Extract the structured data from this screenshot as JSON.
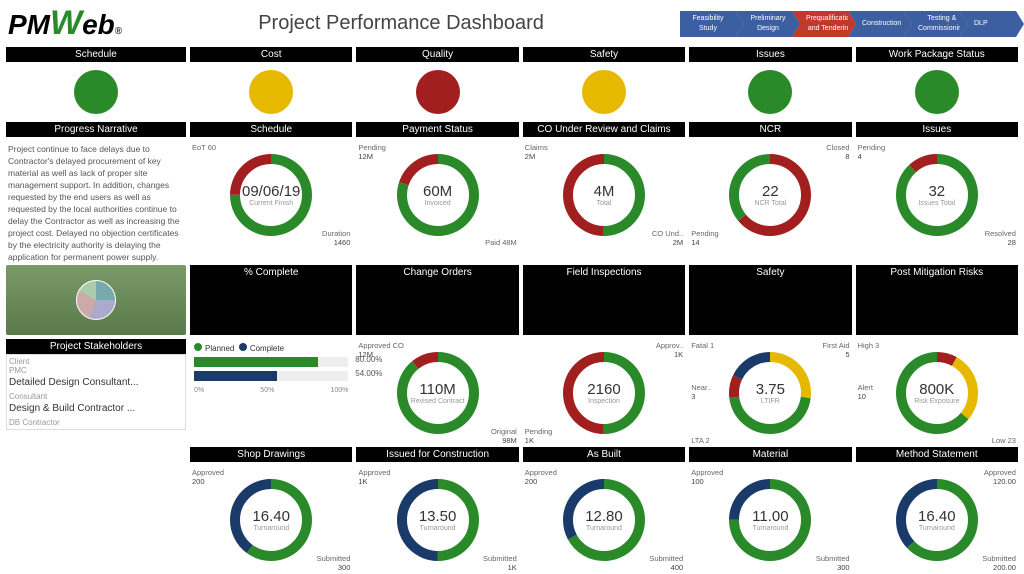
{
  "brand": {
    "pm": "PM",
    "w": "W",
    "eb": "eb",
    "reg": "®"
  },
  "title": "Project Performance Dashboard",
  "phases": [
    {
      "label": "Feasibility Study",
      "cls": "blue"
    },
    {
      "label": "Preliminary Design",
      "cls": "blue"
    },
    {
      "label": "Prequalification and Tendering",
      "cls": "red"
    },
    {
      "label": "Construction",
      "cls": "blue"
    },
    {
      "label": "Testing & Commissioning",
      "cls": "blue"
    },
    {
      "label": "DLP",
      "cls": "blue"
    }
  ],
  "indicators": [
    {
      "name": "Schedule",
      "color": "green"
    },
    {
      "name": "Cost",
      "color": "yellow"
    },
    {
      "name": "Quality",
      "color": "red"
    },
    {
      "name": "Safety",
      "color": "yellow"
    },
    {
      "name": "Issues",
      "color": "green"
    },
    {
      "name": "Work Package Status",
      "color": "green"
    }
  ],
  "narrative": {
    "heading": "Progress Narrative",
    "text": "Project continue to face delays due to Contractor's delayed procurement of key material as well as lack of proper site management support. In addition, changes requested by the end users as well as requested by the local authorities continue to delay the Contractor as well as increasing the project cost. Delayed no objection certificates by the electricity authority is delaying the application for permanent power supply."
  },
  "stakeholders_heading": "Project Stakeholders",
  "stakeholders": [
    {
      "role": "Client",
      "name": ""
    },
    {
      "role": "PMC",
      "name": ""
    },
    {
      "role": "Consultant",
      "name": "Detailed Design Consultant..."
    },
    {
      "role": "DB Contractor",
      "name": "Design & Build Contractor ..."
    }
  ],
  "pct_complete": {
    "heading": "% Complete",
    "legend_planned": "Planned",
    "legend_complete": "Complete",
    "planned_pct": 80,
    "planned_txt": "80.00%",
    "complete_pct": 54,
    "complete_txt": "54.00%",
    "axis": [
      "0%",
      "50%",
      "100%"
    ]
  },
  "donuts_row1": [
    {
      "heading": "Schedule",
      "center_val": "09/06/19",
      "center_lab": "Current Finish",
      "segments": [
        {
          "c": "#2a8a2a",
          "p": 75
        },
        {
          "c": "#a21f1f",
          "p": 25
        }
      ],
      "labels": [
        {
          "t": "EoT 60",
          "pos": "tl"
        },
        {
          "t": "Duration",
          "v": "1460",
          "pos": "br"
        }
      ]
    },
    {
      "heading": "Payment Status",
      "center_val": "60M",
      "center_lab": "Invoiced",
      "segments": [
        {
          "c": "#2a8a2a",
          "p": 80
        },
        {
          "c": "#a21f1f",
          "p": 20
        }
      ],
      "labels": [
        {
          "t": "Pending",
          "v": "12M",
          "pos": "tl"
        },
        {
          "t": "Paid 48M",
          "pos": "br"
        }
      ]
    },
    {
      "heading": "CO Under Review and Claims",
      "center_val": "4M",
      "center_lab": "Total",
      "segments": [
        {
          "c": "#2a8a2a",
          "p": 50
        },
        {
          "c": "#a21f1f",
          "p": 50
        }
      ],
      "labels": [
        {
          "t": "Claims",
          "v": "2M",
          "pos": "tl"
        },
        {
          "t": "CO Und..",
          "v": "2M",
          "pos": "br"
        }
      ]
    },
    {
      "heading": "NCR",
      "center_val": "22",
      "center_lab": "NCR Total",
      "segments": [
        {
          "c": "#a21f1f",
          "p": 64
        },
        {
          "c": "#2a8a2a",
          "p": 36
        }
      ],
      "labels": [
        {
          "t": "Closed",
          "v": "8",
          "pos": "tr"
        },
        {
          "t": "Pending",
          "v": "14",
          "pos": "bl"
        }
      ]
    },
    {
      "heading": "Issues",
      "center_val": "32",
      "center_lab": "Issues Total",
      "segments": [
        {
          "c": "#2a8a2a",
          "p": 88
        },
        {
          "c": "#a21f1f",
          "p": 12
        }
      ],
      "labels": [
        {
          "t": "Pending",
          "v": "4",
          "pos": "tl"
        },
        {
          "t": "Resolved",
          "v": "28",
          "pos": "br"
        }
      ]
    }
  ],
  "donuts_row2": [
    {
      "heading": "Change Orders",
      "center_val": "110M",
      "center_lab": "Revised Contract",
      "segments": [
        {
          "c": "#2a8a2a",
          "p": 89
        },
        {
          "c": "#a21f1f",
          "p": 11
        }
      ],
      "labels": [
        {
          "t": "Approved CO",
          "v": "12M",
          "pos": "tl"
        },
        {
          "t": "Original",
          "v": "98M",
          "pos": "br"
        }
      ]
    },
    {
      "heading": "Field Inspections",
      "center_val": "2160",
      "center_lab": "Inspection",
      "segments": [
        {
          "c": "#2a8a2a",
          "p": 50
        },
        {
          "c": "#a21f1f",
          "p": 50
        }
      ],
      "labels": [
        {
          "t": "Approv..",
          "v": "1K",
          "pos": "tr"
        },
        {
          "t": "Pending",
          "v": "1K",
          "pos": "bl"
        }
      ]
    },
    {
      "heading": "Safety",
      "center_val": "3.75",
      "center_lab": "LTIFR",
      "segments": [
        {
          "c": "#e6b800",
          "p": 27
        },
        {
          "c": "#2a8a2a",
          "p": 46
        },
        {
          "c": "#a21f1f",
          "p": 9
        },
        {
          "c": "#1a3a6a",
          "p": 18
        }
      ],
      "labels": [
        {
          "t": "Fatal 1",
          "pos": "tl"
        },
        {
          "t": "Near..",
          "v": "3",
          "pos": "ml"
        },
        {
          "t": "First Aid",
          "v": "5",
          "pos": "tr"
        },
        {
          "t": "LTA 2",
          "pos": "bl"
        }
      ]
    },
    {
      "heading": "Post Mitigation Risks",
      "center_val": "800K",
      "center_lab": "Risk Exposure",
      "segments": [
        {
          "c": "#a21f1f",
          "p": 8
        },
        {
          "c": "#e6b800",
          "p": 28
        },
        {
          "c": "#2a8a2a",
          "p": 64
        }
      ],
      "labels": [
        {
          "t": "High 3",
          "pos": "tl"
        },
        {
          "t": "Alert",
          "v": "10",
          "pos": "ml"
        },
        {
          "t": "Low 23",
          "pos": "br"
        }
      ]
    }
  ],
  "donuts_row3": [
    {
      "heading": "Shop Drawings",
      "center_val": "16.40",
      "center_lab": "Turnaround",
      "segments": [
        {
          "c": "#2a8a2a",
          "p": 60
        },
        {
          "c": "#1a3a6a",
          "p": 40
        }
      ],
      "labels": [
        {
          "t": "Approved",
          "v": "200",
          "pos": "tl"
        },
        {
          "t": "Submitted",
          "v": "300",
          "pos": "br"
        }
      ]
    },
    {
      "heading": "Issued for Construction",
      "center_val": "13.50",
      "center_lab": "Turnaround",
      "segments": [
        {
          "c": "#2a8a2a",
          "p": 50
        },
        {
          "c": "#1a3a6a",
          "p": 50
        }
      ],
      "labels": [
        {
          "t": "Approved",
          "v": "1K",
          "pos": "tl"
        },
        {
          "t": "Submitted",
          "v": "1K",
          "pos": "br"
        }
      ]
    },
    {
      "heading": "As Built",
      "center_val": "12.80",
      "center_lab": "Turnaround",
      "segments": [
        {
          "c": "#2a8a2a",
          "p": 67
        },
        {
          "c": "#1a3a6a",
          "p": 33
        }
      ],
      "labels": [
        {
          "t": "Approved",
          "v": "200",
          "pos": "tl"
        },
        {
          "t": "Submitted",
          "v": "400",
          "pos": "br"
        }
      ]
    },
    {
      "heading": "Material",
      "center_val": "11.00",
      "center_lab": "Turnaround",
      "segments": [
        {
          "c": "#2a8a2a",
          "p": 75
        },
        {
          "c": "#1a3a6a",
          "p": 25
        }
      ],
      "labels": [
        {
          "t": "Approved",
          "v": "100",
          "pos": "tl"
        },
        {
          "t": "Submitted",
          "v": "300",
          "pos": "br"
        }
      ]
    },
    {
      "heading": "Method Statement",
      "center_val": "16.40",
      "center_lab": "Turnaround",
      "segments": [
        {
          "c": "#2a8a2a",
          "p": 63
        },
        {
          "c": "#1a3a6a",
          "p": 37
        }
      ],
      "labels": [
        {
          "t": "Approved",
          "v": "120.00",
          "pos": "tr"
        },
        {
          "t": "Submitted",
          "v": "200.00",
          "pos": "br"
        }
      ]
    }
  ],
  "colors": {
    "green": "#2a8a2a",
    "yellow": "#e6b800",
    "red": "#a21f1f",
    "navy": "#1a3a6a"
  }
}
